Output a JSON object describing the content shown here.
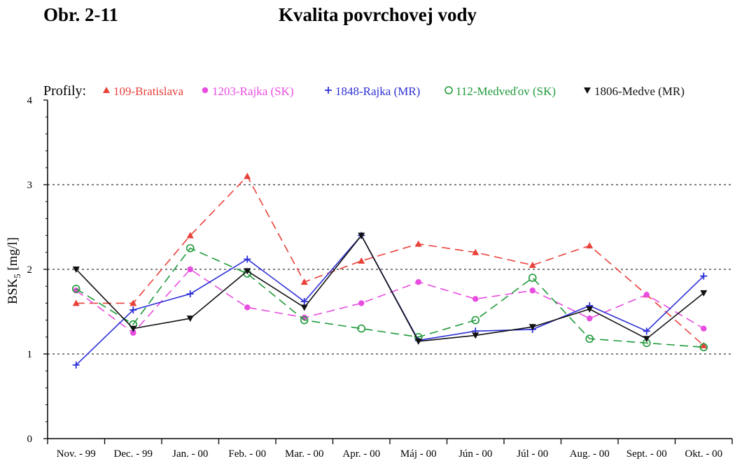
{
  "header": {
    "figure_number": "Obr. 2-11",
    "title": "Kvalita povrchovej vody"
  },
  "chart_data": {
    "type": "line",
    "title": "Kvalita povrchovej vody",
    "legend_prefix": "Profily:",
    "ylabel": "BSK",
    "ylabel_sub": "5",
    "ylabel_unit": " [mg/l]",
    "xlabel": "",
    "ylim": [
      0,
      4
    ],
    "yticks": [
      0,
      1,
      2,
      3,
      4
    ],
    "grid": "horizontal dotted at 1, 2, 3",
    "legend_position": "top",
    "categories": [
      "Nov. - 99",
      "Dec. - 99",
      "Jan. - 00",
      "Feb. - 00",
      "Mar. - 00",
      "Apr. - 00",
      "Máj - 00",
      "Jún - 00",
      "Júl - 00",
      "Aug. - 00",
      "Sept. - 00",
      "Okt. - 00"
    ],
    "series": [
      {
        "name": "109-Bratislava",
        "color": "#e8413a",
        "marker": "triangle-up",
        "line": "dashed",
        "values": [
          1.6,
          1.6,
          2.4,
          3.1,
          1.85,
          2.1,
          2.3,
          2.2,
          2.05,
          2.28,
          1.7,
          1.1
        ]
      },
      {
        "name": "1203-Rajka (SK)",
        "color": "#e84ce0",
        "marker": "circle-filled",
        "line": "dashed",
        "values": [
          1.75,
          1.25,
          2.0,
          1.55,
          1.43,
          1.6,
          1.85,
          1.65,
          1.75,
          1.42,
          1.7,
          1.3
        ]
      },
      {
        "name": "1848-Rajka (MR)",
        "color": "#2d2fd6",
        "marker": "plus",
        "line": "solid",
        "values": [
          0.87,
          1.52,
          1.71,
          2.12,
          1.62,
          2.4,
          1.16,
          1.27,
          1.29,
          1.57,
          1.27,
          1.92
        ]
      },
      {
        "name": "112-Medveďov (SK)",
        "color": "#1f9a3a",
        "marker": "circle-open",
        "line": "dashed",
        "values": [
          1.77,
          1.35,
          2.25,
          1.95,
          1.4,
          1.3,
          1.2,
          1.4,
          1.9,
          1.18,
          1.13,
          1.08
        ]
      },
      {
        "name": "1806-Medve (MR)",
        "color": "#111111",
        "marker": "triangle-down",
        "line": "solid",
        "values": [
          2.0,
          1.3,
          1.42,
          1.98,
          1.55,
          2.4,
          1.15,
          1.22,
          1.32,
          1.53,
          1.18,
          1.72
        ]
      }
    ]
  }
}
